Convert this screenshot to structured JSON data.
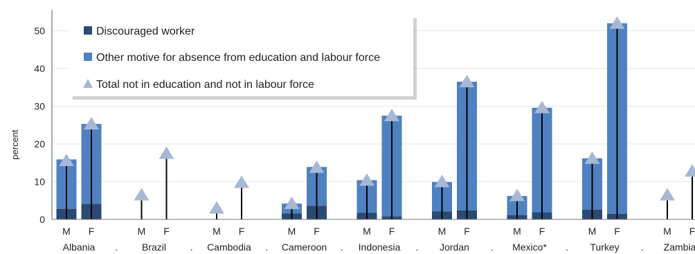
{
  "chart_data": {
    "type": "bar",
    "ylabel": "percent",
    "ylim": [
      0,
      55
    ],
    "yticks": [
      0,
      10,
      20,
      30,
      40,
      50
    ],
    "grid": true,
    "legend_placement": "top-left",
    "colors": {
      "discouraged": "#2a4a72",
      "other": "#4f81c1",
      "total": "#a7b8d6",
      "grid": "#e4e7ec",
      "whisker": "#000000"
    },
    "groups": [
      "Albania",
      "Brazil",
      "Cambodia",
      "Cameroon",
      "Indonesia",
      "Jordan",
      "Mexico*",
      "Turkey",
      "Zambia"
    ],
    "separator": ".",
    "sexes": [
      "M",
      "F"
    ],
    "series": [
      {
        "name": "Discouraged worker",
        "marker": "stacked-bar",
        "values": [
          2.8,
          4.1,
          null,
          null,
          null,
          null,
          1.6,
          3.6,
          1.8,
          0.8,
          2.1,
          2.4,
          1.1,
          1.9,
          2.6,
          1.5,
          null,
          null
        ]
      },
      {
        "name": "Other motive for absence from education and labour force",
        "marker": "stacked-bar",
        "values": [
          13.1,
          21.2,
          null,
          null,
          null,
          null,
          2.6,
          10.3,
          8.6,
          26.7,
          7.8,
          34.1,
          5.1,
          27.7,
          13.6,
          50.5,
          null,
          null
        ]
      },
      {
        "name": "Total not in education and not in labour force",
        "marker": "triangle",
        "values": [
          15.6,
          25.3,
          6.5,
          17.5,
          3.0,
          9.8,
          4.2,
          13.8,
          10.4,
          27.5,
          10.0,
          36.5,
          6.3,
          29.6,
          16.2,
          52.0,
          6.5,
          12.8
        ]
      }
    ]
  }
}
